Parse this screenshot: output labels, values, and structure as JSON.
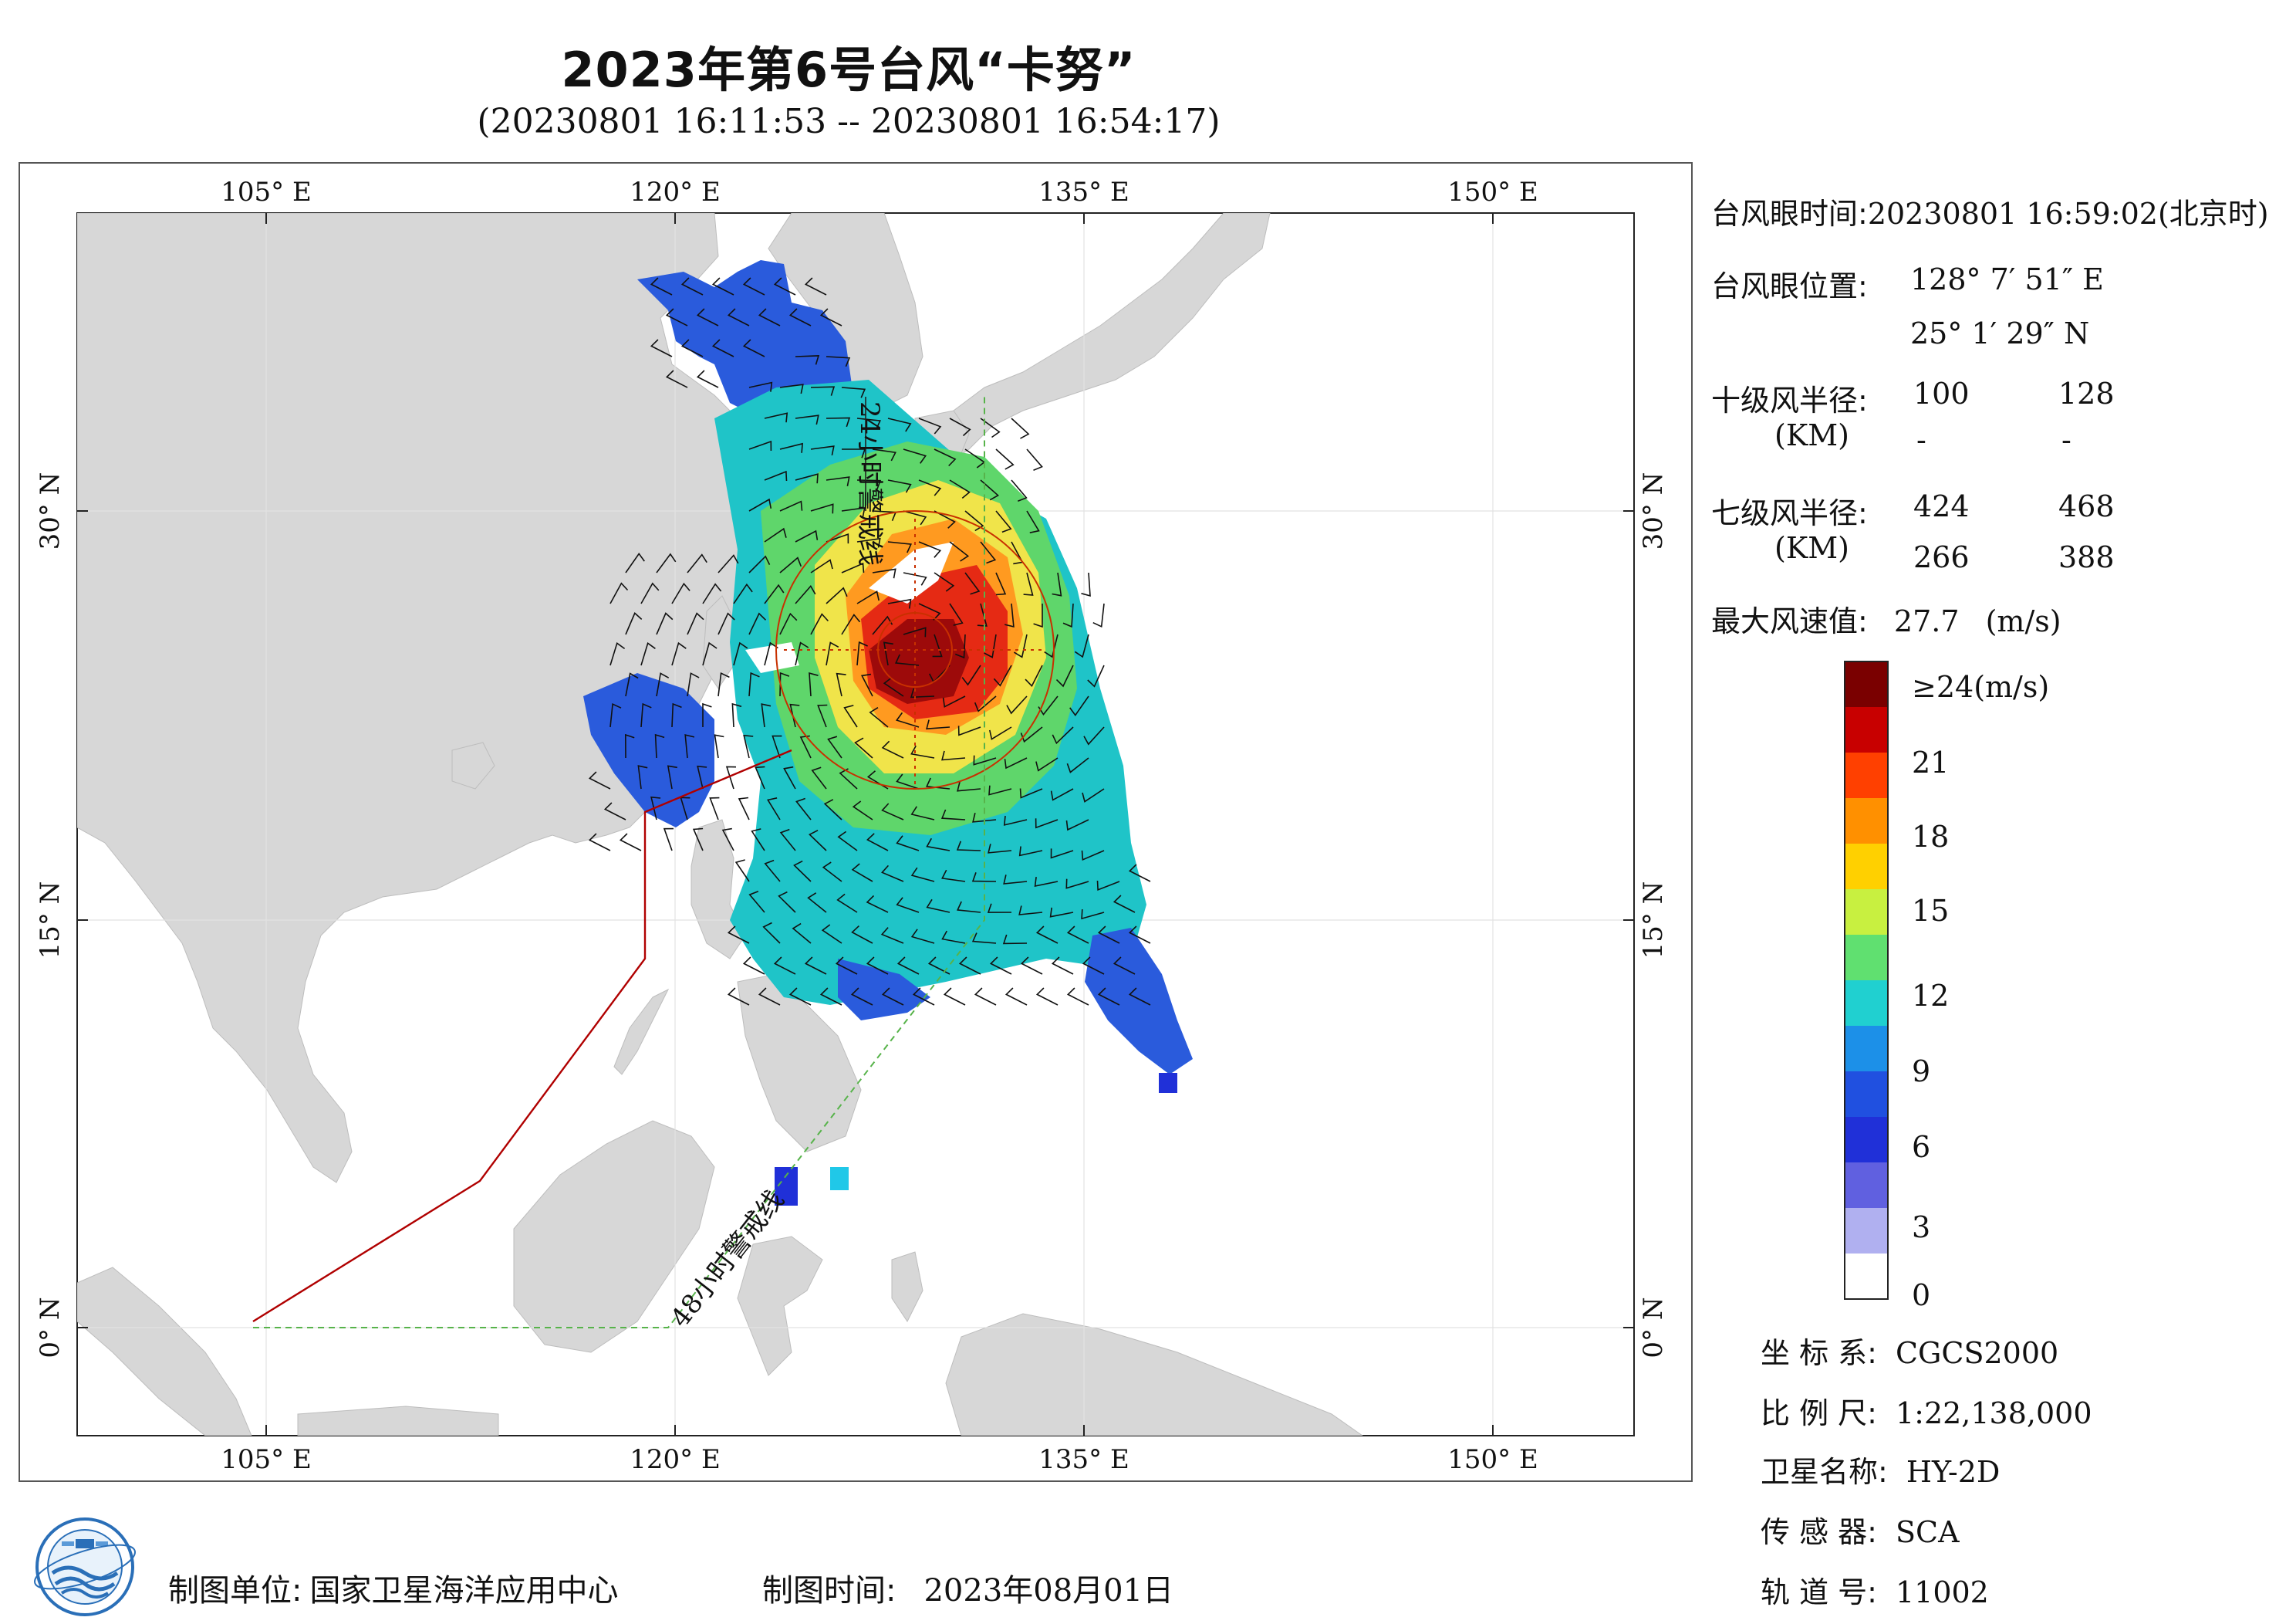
{
  "title": "2023年第6号台风“卡努”",
  "subtitle": "(20230801 16:11:53 -- 20230801 16:54:17)",
  "map": {
    "lon_ticks": [
      "105° E",
      "120° E",
      "135° E",
      "150° E"
    ],
    "lat_ticks": [
      "30° N",
      "15° N",
      "0° N"
    ],
    "line_24h": "24小时警戒线",
    "line_48h": "48小时警戒线",
    "colors": {
      "land": "#d7d7d7",
      "sea": "#ffffff",
      "line_24h": "#b00000",
      "line_48h": "#57b34a",
      "track": "#c83000"
    }
  },
  "info": {
    "eye_time_label": "台风眼时间:",
    "eye_time_value": "20230801 16:59:02(北京时)",
    "eye_pos_label": "台风眼位置:",
    "eye_lon": "128° 7′ 51″ E",
    "eye_lat": "25° 1′ 29″ N",
    "r10_label": "十级风半径:",
    "r10_unit": "(KM)",
    "r10_values": [
      "100",
      "128",
      "-",
      "-"
    ],
    "r7_label": "七级风半径:",
    "r7_unit": "(KM)",
    "r7_values": [
      "424",
      "468",
      "266",
      "388"
    ],
    "max_label": "最大风速值:",
    "max_value": "27.7",
    "max_unit": "(m/s)"
  },
  "colorbar": {
    "labels": [
      "≥24(m/s)",
      "21",
      "18",
      "15",
      "12",
      "9",
      "6",
      "3",
      "0"
    ],
    "colors": [
      "#7a0000",
      "#c80000",
      "#ff4000",
      "#ff9000",
      "#ffd000",
      "#c8f040",
      "#60e070",
      "#20d0d0",
      "#1c90e8",
      "#2050e0",
      "#2030d8",
      "#6060e0",
      "#b0b0f0",
      "#ffffff"
    ]
  },
  "meta": [
    {
      "label": "坐 标 系:",
      "value": "CGCS2000"
    },
    {
      "label": "比 例 尺:",
      "value": "1:22,138,000"
    },
    {
      "label": "卫星名称:",
      "value": "HY-2D"
    },
    {
      "label": "传 感 器:",
      "value": "SCA"
    },
    {
      "label": "轨 道 号:",
      "value": "11002"
    }
  ],
  "footer": {
    "unit_label": "制图单位:",
    "unit_value": "国家卫星海洋应用中心",
    "time_label": "制图时间:",
    "time_value": "2023年08月01日"
  }
}
